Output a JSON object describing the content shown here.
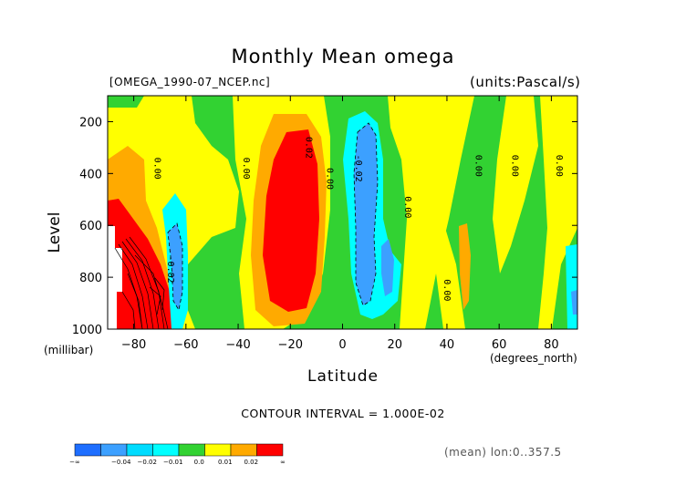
{
  "chart_data": {
    "type": "heatmap",
    "title": "Monthly Mean omega",
    "file_label": "[OMEGA_1990-07_NCEP.nc]",
    "units_label": "(units:Pascal/s)",
    "xlabel": "Latitude",
    "x_unit": "(degrees_north)",
    "ylabel": "Level",
    "y_unit": "(millibar)",
    "xlim": [
      -90,
      90
    ],
    "ylim": [
      1000,
      100
    ],
    "x_ticks": [
      -80,
      -60,
      -40,
      -20,
      0,
      20,
      40,
      60,
      80
    ],
    "y_ticks": [
      200,
      400,
      600,
      800,
      1000
    ],
    "contour_interval_text": "CONTOUR INTERVAL = 1.000E-02",
    "mean_note": "(mean) lon:0..357.5",
    "contour_labels": [
      {
        "text": "0.00",
        "lat": -72,
        "lev": 380
      },
      {
        "text": "0.00",
        "lat": -38,
        "lev": 380
      },
      {
        "text": "0.02",
        "lat": -14,
        "lev": 300
      },
      {
        "text": "0.00",
        "lat": -6,
        "lev": 420
      },
      {
        "text": "-0.02",
        "lat": 5,
        "lev": 380
      },
      {
        "text": "0.00",
        "lat": 24,
        "lev": 530
      },
      {
        "text": "0.00",
        "lat": 39,
        "lev": 850
      },
      {
        "text": "0.00",
        "lat": 51,
        "lev": 370
      },
      {
        "text": "0.00",
        "lat": 65,
        "lev": 370
      },
      {
        "text": "0.00",
        "lat": 82,
        "lev": 370
      },
      {
        "text": "-0.02",
        "lat": -67,
        "lev": 770
      }
    ],
    "colorbar": {
      "colors": [
        "#1e6eff",
        "#3ca0ff",
        "#00dcff",
        "#00ffff",
        "#32d232",
        "#ffff00",
        "#ffaa00",
        "#ff0000"
      ],
      "labels": [
        "-∞",
        "-0.04",
        "-0.02",
        "-0.01",
        "0.0",
        "0.01",
        "0.02",
        "∞"
      ]
    }
  }
}
